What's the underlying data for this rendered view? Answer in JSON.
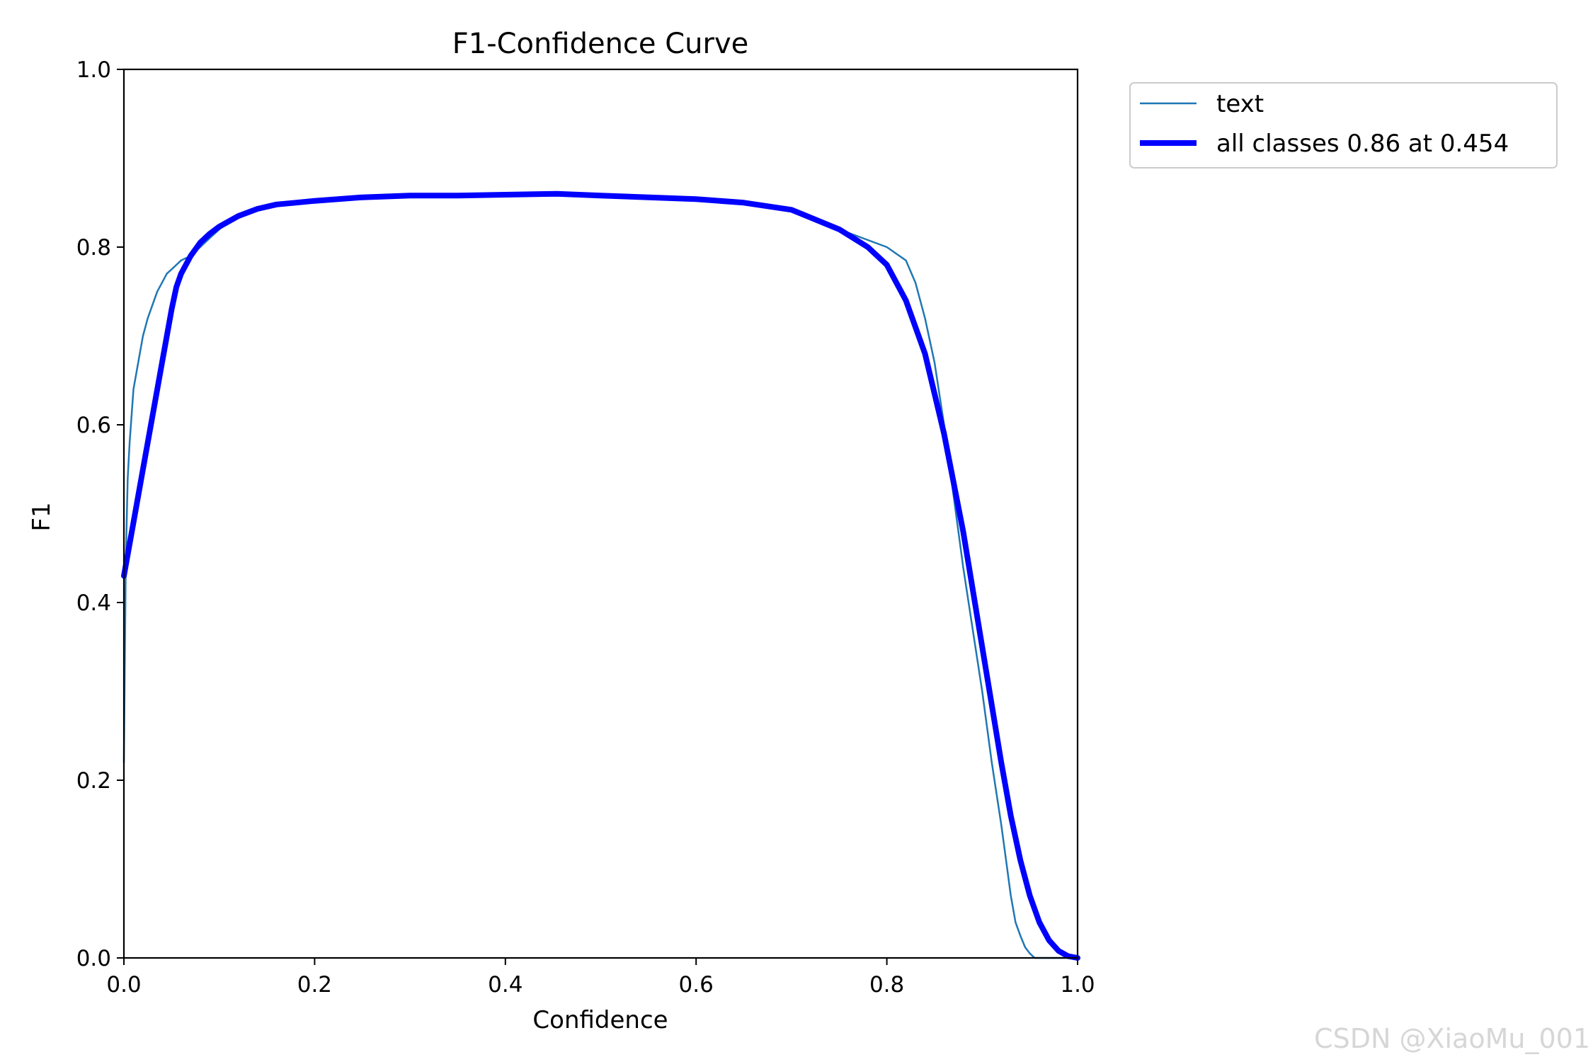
{
  "watermark": "CSDN @XiaoMu_001",
  "chart_data": {
    "type": "line",
    "title": "F1-Confidence Curve",
    "xlabel": "Confidence",
    "ylabel": "F1",
    "xlim": [
      0,
      1
    ],
    "ylim": [
      0,
      1
    ],
    "xticks": [
      "0.0",
      "0.2",
      "0.4",
      "0.6",
      "0.8",
      "1.0"
    ],
    "yticks": [
      "0.0",
      "0.2",
      "0.4",
      "0.6",
      "0.8",
      "1.0"
    ],
    "legend_position": "outside-top-right",
    "grid": false,
    "series": [
      {
        "name": "text",
        "color": "#1f77b4",
        "line_width": "thin",
        "x": [
          0.0,
          0.002,
          0.004,
          0.006,
          0.008,
          0.01,
          0.015,
          0.02,
          0.025,
          0.03,
          0.035,
          0.04,
          0.045,
          0.05,
          0.06,
          0.07,
          0.08,
          0.09,
          0.1,
          0.12,
          0.14,
          0.16,
          0.18,
          0.2,
          0.25,
          0.3,
          0.35,
          0.4,
          0.45,
          0.5,
          0.55,
          0.6,
          0.65,
          0.7,
          0.75,
          0.78,
          0.8,
          0.82,
          0.83,
          0.84,
          0.85,
          0.86,
          0.87,
          0.88,
          0.89,
          0.9,
          0.91,
          0.92,
          0.925,
          0.93,
          0.935,
          0.94,
          0.945,
          0.95,
          0.955,
          0.96,
          0.97,
          1.0
        ],
        "y": [
          0.22,
          0.45,
          0.54,
          0.58,
          0.61,
          0.64,
          0.67,
          0.7,
          0.72,
          0.735,
          0.75,
          0.76,
          0.77,
          0.775,
          0.785,
          0.79,
          0.8,
          0.81,
          0.82,
          0.835,
          0.845,
          0.848,
          0.85,
          0.852,
          0.856,
          0.858,
          0.858,
          0.859,
          0.86,
          0.86,
          0.857,
          0.855,
          0.852,
          0.842,
          0.82,
          0.808,
          0.8,
          0.785,
          0.76,
          0.72,
          0.67,
          0.6,
          0.52,
          0.44,
          0.37,
          0.3,
          0.22,
          0.15,
          0.11,
          0.07,
          0.04,
          0.025,
          0.012,
          0.005,
          0.0,
          0.0,
          0.0,
          0.0
        ]
      },
      {
        "name": "all classes 0.86 at 0.454",
        "color": "#0000ff",
        "line_width": "thick",
        "x": [
          0.0,
          0.01,
          0.02,
          0.03,
          0.04,
          0.05,
          0.055,
          0.06,
          0.07,
          0.08,
          0.09,
          0.1,
          0.12,
          0.14,
          0.16,
          0.18,
          0.2,
          0.25,
          0.3,
          0.35,
          0.4,
          0.454,
          0.5,
          0.55,
          0.6,
          0.65,
          0.7,
          0.75,
          0.78,
          0.8,
          0.82,
          0.84,
          0.86,
          0.88,
          0.9,
          0.92,
          0.93,
          0.94,
          0.95,
          0.96,
          0.97,
          0.98,
          0.99,
          1.0
        ],
        "y": [
          0.43,
          0.49,
          0.55,
          0.61,
          0.67,
          0.73,
          0.755,
          0.77,
          0.79,
          0.805,
          0.815,
          0.823,
          0.835,
          0.843,
          0.848,
          0.85,
          0.852,
          0.856,
          0.858,
          0.858,
          0.859,
          0.86,
          0.858,
          0.856,
          0.854,
          0.85,
          0.842,
          0.82,
          0.8,
          0.78,
          0.74,
          0.68,
          0.59,
          0.48,
          0.35,
          0.22,
          0.16,
          0.11,
          0.07,
          0.04,
          0.02,
          0.008,
          0.002,
          0.0
        ]
      }
    ]
  }
}
